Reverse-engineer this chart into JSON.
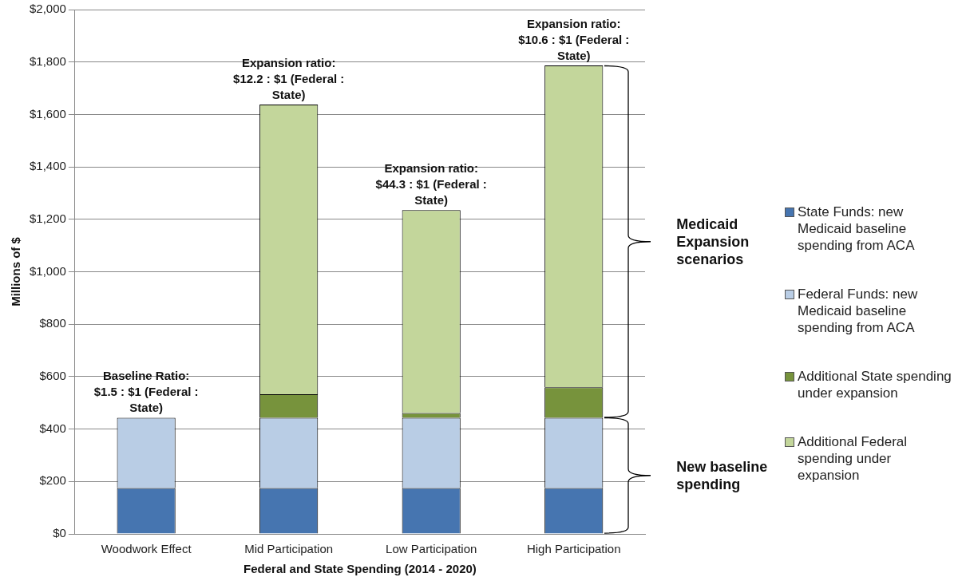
{
  "chart_data": {
    "type": "bar",
    "stacked": true,
    "categories": [
      "Woodwork Effect",
      "Mid Participation",
      "Low Participation",
      "High Participation"
    ],
    "xlabel": "Federal and State Spending (2014 - 2020)",
    "ylabel": "Millions of $",
    "series": [
      {
        "name": "State Funds: new Medicaid baseline spending from ACA",
        "color": "#4675b0",
        "values": [
          175,
          175,
          175,
          175
        ]
      },
      {
        "name": "Federal Funds: new Medicaid baseline spending from ACA",
        "color": "#b9cde5",
        "values": [
          268,
          268,
          268,
          268
        ]
      },
      {
        "name": "Additional State spending under expansion",
        "color": "#77933c",
        "values": [
          null,
          90,
          18,
          116
        ]
      },
      {
        "name": "Additional Federal spending under expansion",
        "color": "#c3d69b",
        "values": [
          null,
          1105,
          774,
          1228
        ]
      }
    ],
    "ylim": [
      0,
      2000
    ],
    "yticks": [
      {
        "value": 0,
        "label": "$0"
      },
      {
        "value": 200,
        "label": "$200"
      },
      {
        "value": 400,
        "label": "$400"
      },
      {
        "value": 600,
        "label": "$600"
      },
      {
        "value": 800,
        "label": "$800"
      },
      {
        "value": 1000,
        "label": "$1,000"
      },
      {
        "value": 1200,
        "label": "$1,200"
      },
      {
        "value": 1400,
        "label": "$1,400"
      },
      {
        "value": 1600,
        "label": "$1,600"
      },
      {
        "value": 1800,
        "label": "$1,800"
      },
      {
        "value": 2000,
        "label": "$2,000"
      }
    ],
    "grid": "y",
    "legend": "right",
    "annotations": [
      {
        "text": "Baseline Ratio: $1.5 : $1 (Federal : State)",
        "x": "Woodwork Effect",
        "y": 443
      },
      {
        "text": "Expansion ratio: $12.2 : $1 (Federal : State)",
        "x": "Mid Participation",
        "y": 1638
      },
      {
        "text": "Expansion ratio: $44.3 : $1 (Federal : State)",
        "x": "Low Participation",
        "y": 1235
      },
      {
        "text": "Expansion ratio: $10.6 : $1 (Federal : State)",
        "x": "High Participation",
        "y": 1787
      },
      "Medicaid Expansion scenarios",
      "New baseline spending"
    ]
  }
}
